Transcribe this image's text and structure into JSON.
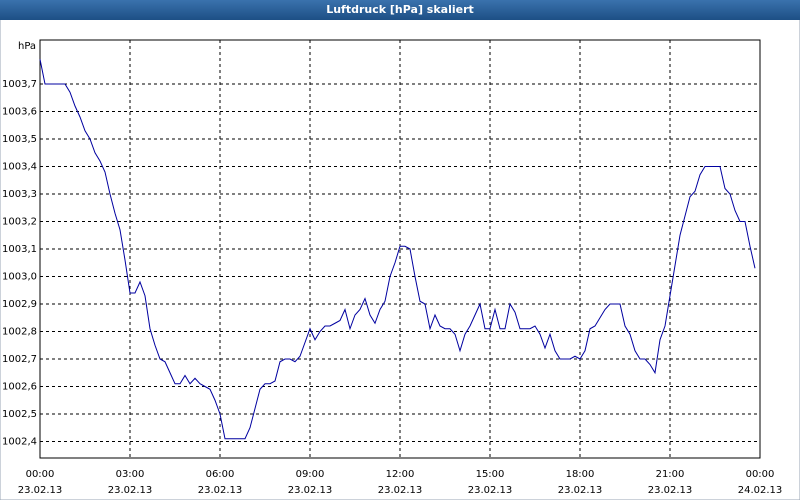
{
  "chart_data": {
    "type": "line",
    "title": "Luftdruck [hPa] skaliert",
    "y_unit": "hPa",
    "x": [
      0,
      10,
      20,
      30,
      40,
      50,
      60,
      70,
      80,
      90,
      100,
      110,
      120,
      130,
      140,
      150,
      160,
      170,
      180,
      190,
      200,
      210,
      220,
      230,
      240,
      250,
      260,
      270,
      280,
      290,
      300,
      310,
      320,
      330,
      340,
      350,
      360,
      370,
      380,
      390,
      400,
      410,
      420,
      430,
      440,
      450,
      460,
      470,
      480,
      490,
      500,
      510,
      520,
      530,
      540,
      550,
      560,
      570,
      580,
      590,
      600,
      610,
      620,
      630,
      640,
      650,
      660,
      670,
      680,
      690,
      700,
      710,
      720,
      730,
      740,
      750,
      760,
      770,
      780,
      790,
      800,
      810,
      820,
      830,
      840,
      850,
      860,
      870,
      880,
      890,
      900,
      910,
      920,
      930,
      940,
      950,
      960,
      970,
      980,
      990,
      1000,
      1010,
      1020,
      1030,
      1040,
      1050,
      1060,
      1070,
      1080,
      1090,
      1100,
      1110,
      1120,
      1130,
      1140,
      1150,
      1160,
      1170,
      1180,
      1190,
      1200,
      1210,
      1220,
      1230,
      1240,
      1250,
      1260,
      1270,
      1280,
      1290,
      1300,
      1310,
      1320,
      1330,
      1340,
      1350,
      1360,
      1370,
      1380,
      1390,
      1400,
      1410,
      1420,
      1430
    ],
    "series": [
      {
        "name": "Luftdruck",
        "color": "#0000a0",
        "values": [
          1003.79,
          1003.7,
          1003.7,
          1003.7,
          1003.7,
          1003.7,
          1003.67,
          1003.62,
          1003.58,
          1003.53,
          1003.5,
          1003.45,
          1003.42,
          1003.38,
          1003.3,
          1003.23,
          1003.17,
          1003.06,
          1002.94,
          1002.94,
          1002.98,
          1002.93,
          1002.81,
          1002.75,
          1002.7,
          1002.69,
          1002.65,
          1002.61,
          1002.61,
          1002.64,
          1002.61,
          1002.63,
          1002.61,
          1002.6,
          1002.59,
          1002.55,
          1002.5,
          1002.41,
          1002.41,
          1002.41,
          1002.41,
          1002.41,
          1002.45,
          1002.52,
          1002.59,
          1002.61,
          1002.61,
          1002.62,
          1002.69,
          1002.7,
          1002.7,
          1002.69,
          1002.71,
          1002.76,
          1002.81,
          1002.77,
          1002.8,
          1002.82,
          1002.82,
          1002.83,
          1002.84,
          1002.88,
          1002.81,
          1002.86,
          1002.88,
          1002.92,
          1002.86,
          1002.83,
          1002.88,
          1002.91,
          1003.0,
          1003.05,
          1003.11,
          1003.11,
          1003.1,
          1003.0,
          1002.91,
          1002.9,
          1002.81,
          1002.86,
          1002.82,
          1002.81,
          1002.81,
          1002.79,
          1002.73,
          1002.79,
          1002.82,
          1002.86,
          1002.9,
          1002.81,
          1002.81,
          1002.88,
          1002.81,
          1002.81,
          1002.9,
          1002.87,
          1002.81,
          1002.81,
          1002.81,
          1002.82,
          1002.79,
          1002.74,
          1002.79,
          1002.73,
          1002.7,
          1002.7,
          1002.7,
          1002.71,
          1002.7,
          1002.73,
          1002.81,
          1002.82,
          1002.85,
          1002.88,
          1002.9,
          1002.9,
          1002.9,
          1002.82,
          1002.79,
          1002.73,
          1002.7,
          1002.7,
          1002.68,
          1002.65,
          1002.77,
          1002.82,
          1002.93,
          1003.04,
          1003.15,
          1003.22,
          1003.29,
          1003.31,
          1003.37,
          1003.4,
          1003.4,
          1003.4,
          1003.4,
          1003.32,
          1003.3,
          1003.24,
          1003.2,
          1003.2,
          1003.11,
          1003.03
        ]
      }
    ],
    "xlim": [
      0,
      1440
    ],
    "xticks": [
      {
        "value": 0,
        "label": "00:00",
        "date": "23.02.13"
      },
      {
        "value": 180,
        "label": "03:00",
        "date": "23.02.13"
      },
      {
        "value": 360,
        "label": "06:00",
        "date": "23.02.13"
      },
      {
        "value": 540,
        "label": "09:00",
        "date": "23.02.13"
      },
      {
        "value": 720,
        "label": "12:00",
        "date": "23.02.13"
      },
      {
        "value": 900,
        "label": "15:00",
        "date": "23.02.13"
      },
      {
        "value": 1080,
        "label": "18:00",
        "date": "23.02.13"
      },
      {
        "value": 1260,
        "label": "21:00",
        "date": "23.02.13"
      },
      {
        "value": 1440,
        "label": "00:00",
        "date": "24.02.13"
      }
    ],
    "ylim": [
      1002.34,
      1003.86
    ],
    "yticks": [
      {
        "value": 1002.4,
        "label": "1002,4"
      },
      {
        "value": 1002.5,
        "label": "1002,5"
      },
      {
        "value": 1002.6,
        "label": "1002,6"
      },
      {
        "value": 1002.7,
        "label": "1002,7"
      },
      {
        "value": 1002.8,
        "label": "1002,8"
      },
      {
        "value": 1002.9,
        "label": "1002,9"
      },
      {
        "value": 1003.0,
        "label": "1003,0"
      },
      {
        "value": 1003.1,
        "label": "1003,1"
      },
      {
        "value": 1003.2,
        "label": "1003,2"
      },
      {
        "value": 1003.3,
        "label": "1003,3"
      },
      {
        "value": 1003.4,
        "label": "1003,4"
      },
      {
        "value": 1003.5,
        "label": "1003,5"
      },
      {
        "value": 1003.6,
        "label": "1003,6"
      },
      {
        "value": 1003.7,
        "label": "1003,7"
      }
    ],
    "grid": true
  }
}
